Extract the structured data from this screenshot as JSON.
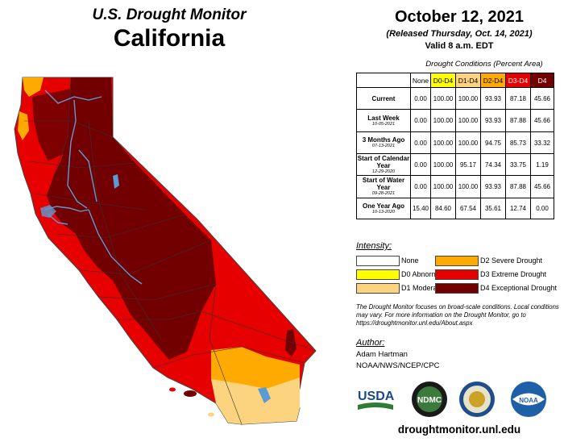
{
  "header": {
    "title": "U.S. Drought Monitor",
    "state": "California"
  },
  "release": {
    "date": "October 12, 2021",
    "released": "(Released Thursday, Oct. 14, 2021)",
    "valid": "Valid 8 a.m. EDT"
  },
  "table": {
    "caption": "Drought Conditions (Percent Area)",
    "columns": [
      {
        "label": "None",
        "color": "#ffffff"
      },
      {
        "label": "D0-D4",
        "color": "#ffff00"
      },
      {
        "label": "D1-D4",
        "color": "#fcd37f"
      },
      {
        "label": "D2-D4",
        "color": "#ffaa00"
      },
      {
        "label": "D3-D4",
        "color": "#e60000"
      },
      {
        "label": "D4",
        "color": "#730000"
      }
    ],
    "rows": [
      {
        "label": "Current",
        "sub": "",
        "values": [
          "0.00",
          "100.00",
          "100.00",
          "93.93",
          "87.18",
          "45.66"
        ]
      },
      {
        "label": "Last Week",
        "sub": "10-05-2021",
        "values": [
          "0.00",
          "100.00",
          "100.00",
          "93.93",
          "87.88",
          "45.66"
        ]
      },
      {
        "label": "3 Months Ago",
        "sub": "07-13-2021",
        "values": [
          "0.00",
          "100.00",
          "100.00",
          "94.75",
          "85.73",
          "33.32"
        ]
      },
      {
        "label": "Start of Calendar Year",
        "sub": "12-29-2020",
        "values": [
          "0.00",
          "100.00",
          "95.17",
          "74.34",
          "33.75",
          "1.19"
        ]
      },
      {
        "label": "Start of Water Year",
        "sub": "09-28-2021",
        "values": [
          "0.00",
          "100.00",
          "100.00",
          "93.93",
          "87.88",
          "45.66"
        ]
      },
      {
        "label": "One Year Ago",
        "sub": "10-13-2020",
        "values": [
          "15.40",
          "84.60",
          "67.54",
          "35.61",
          "12.74",
          "0.00"
        ]
      }
    ]
  },
  "legend": {
    "title": "Intensity:",
    "items": [
      {
        "label": "None",
        "color": "#ffffff"
      },
      {
        "label": "D0 Abnormally Dry",
        "color": "#ffff00"
      },
      {
        "label": "D1 Moderate Drought",
        "color": "#fcd37f"
      },
      {
        "label": "D2 Severe Drought",
        "color": "#ffaa00"
      },
      {
        "label": "D3 Extreme Drought",
        "color": "#e60000"
      },
      {
        "label": "D4 Exceptional Drought",
        "color": "#730000"
      }
    ]
  },
  "note": "The Drought Monitor focuses on broad-scale conditions. Local conditions may vary. For more information on the Drought Monitor, go to https://droughtmonitor.unl.edu/About.aspx",
  "author": {
    "title": "Author:",
    "name": "Adam Hartman",
    "org": "NOAA/NWS/NCEP/CPC"
  },
  "logos": {
    "usda": "USDA",
    "ndmc": "NDMC",
    "noaa": "NOAA",
    "icons": [
      "usda-logo",
      "ndmc-logo",
      "doc-seal",
      "noaa-logo"
    ]
  },
  "website": "droughtmonitor.unl.edu",
  "map_colors": {
    "d2": "#ffaa00",
    "d1": "#fcd37f",
    "d3": "#e60000",
    "d4": "#730000",
    "water": "#5b9bd5",
    "boundary": "#333333"
  }
}
